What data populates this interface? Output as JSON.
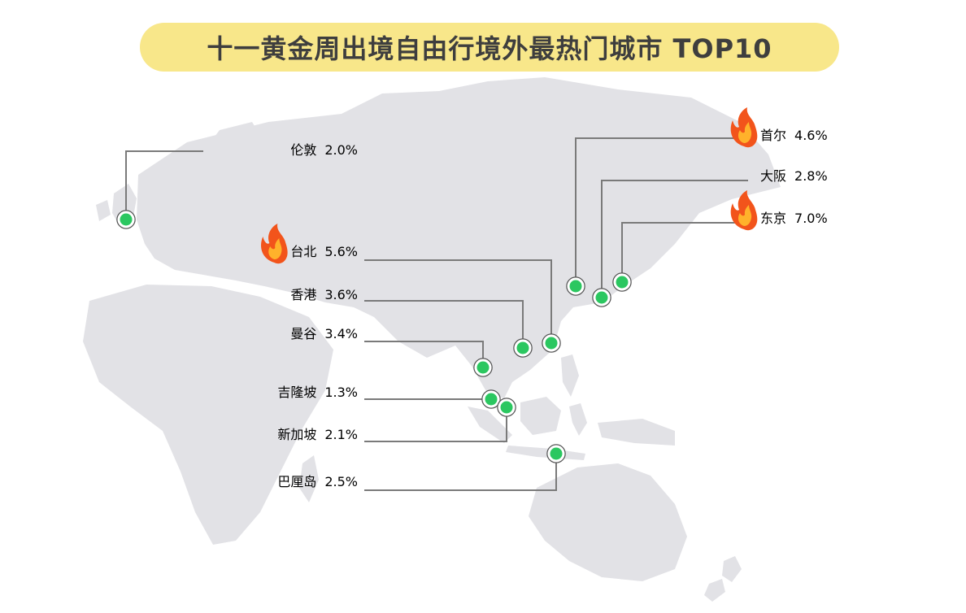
{
  "title": "十一黄金周出境自由行境外最热门城市 TOP10",
  "colors": {
    "title_bg": "#f8e78a",
    "map": "#e2e2e6",
    "leader": "#7a7a7a",
    "dot": "#2bc760",
    "percent": "#27c15e",
    "hot_icon": "#f2541b"
  },
  "chart_data": {
    "type": "table",
    "title": "十一黄金周出境自由行境外最热门城市 TOP10",
    "rows": [
      {
        "city": "伦敦",
        "value": "2.0%",
        "hot": false
      },
      {
        "city": "台北",
        "value": "5.6%",
        "hot": true
      },
      {
        "city": "香港",
        "value": "3.6%",
        "hot": false
      },
      {
        "city": "曼谷",
        "value": "3.4%",
        "hot": false
      },
      {
        "city": "吉隆坡",
        "value": "1.3%",
        "hot": false
      },
      {
        "city": "新加坡",
        "value": "2.1%",
        "hot": false
      },
      {
        "city": "巴厘岛",
        "value": "2.5%",
        "hot": false
      },
      {
        "city": "首尔",
        "value": "4.6%",
        "hot": true
      },
      {
        "city": "大阪",
        "value": "2.8%",
        "hot": false
      },
      {
        "city": "东京",
        "value": "7.0%",
        "hot": true
      }
    ]
  }
}
